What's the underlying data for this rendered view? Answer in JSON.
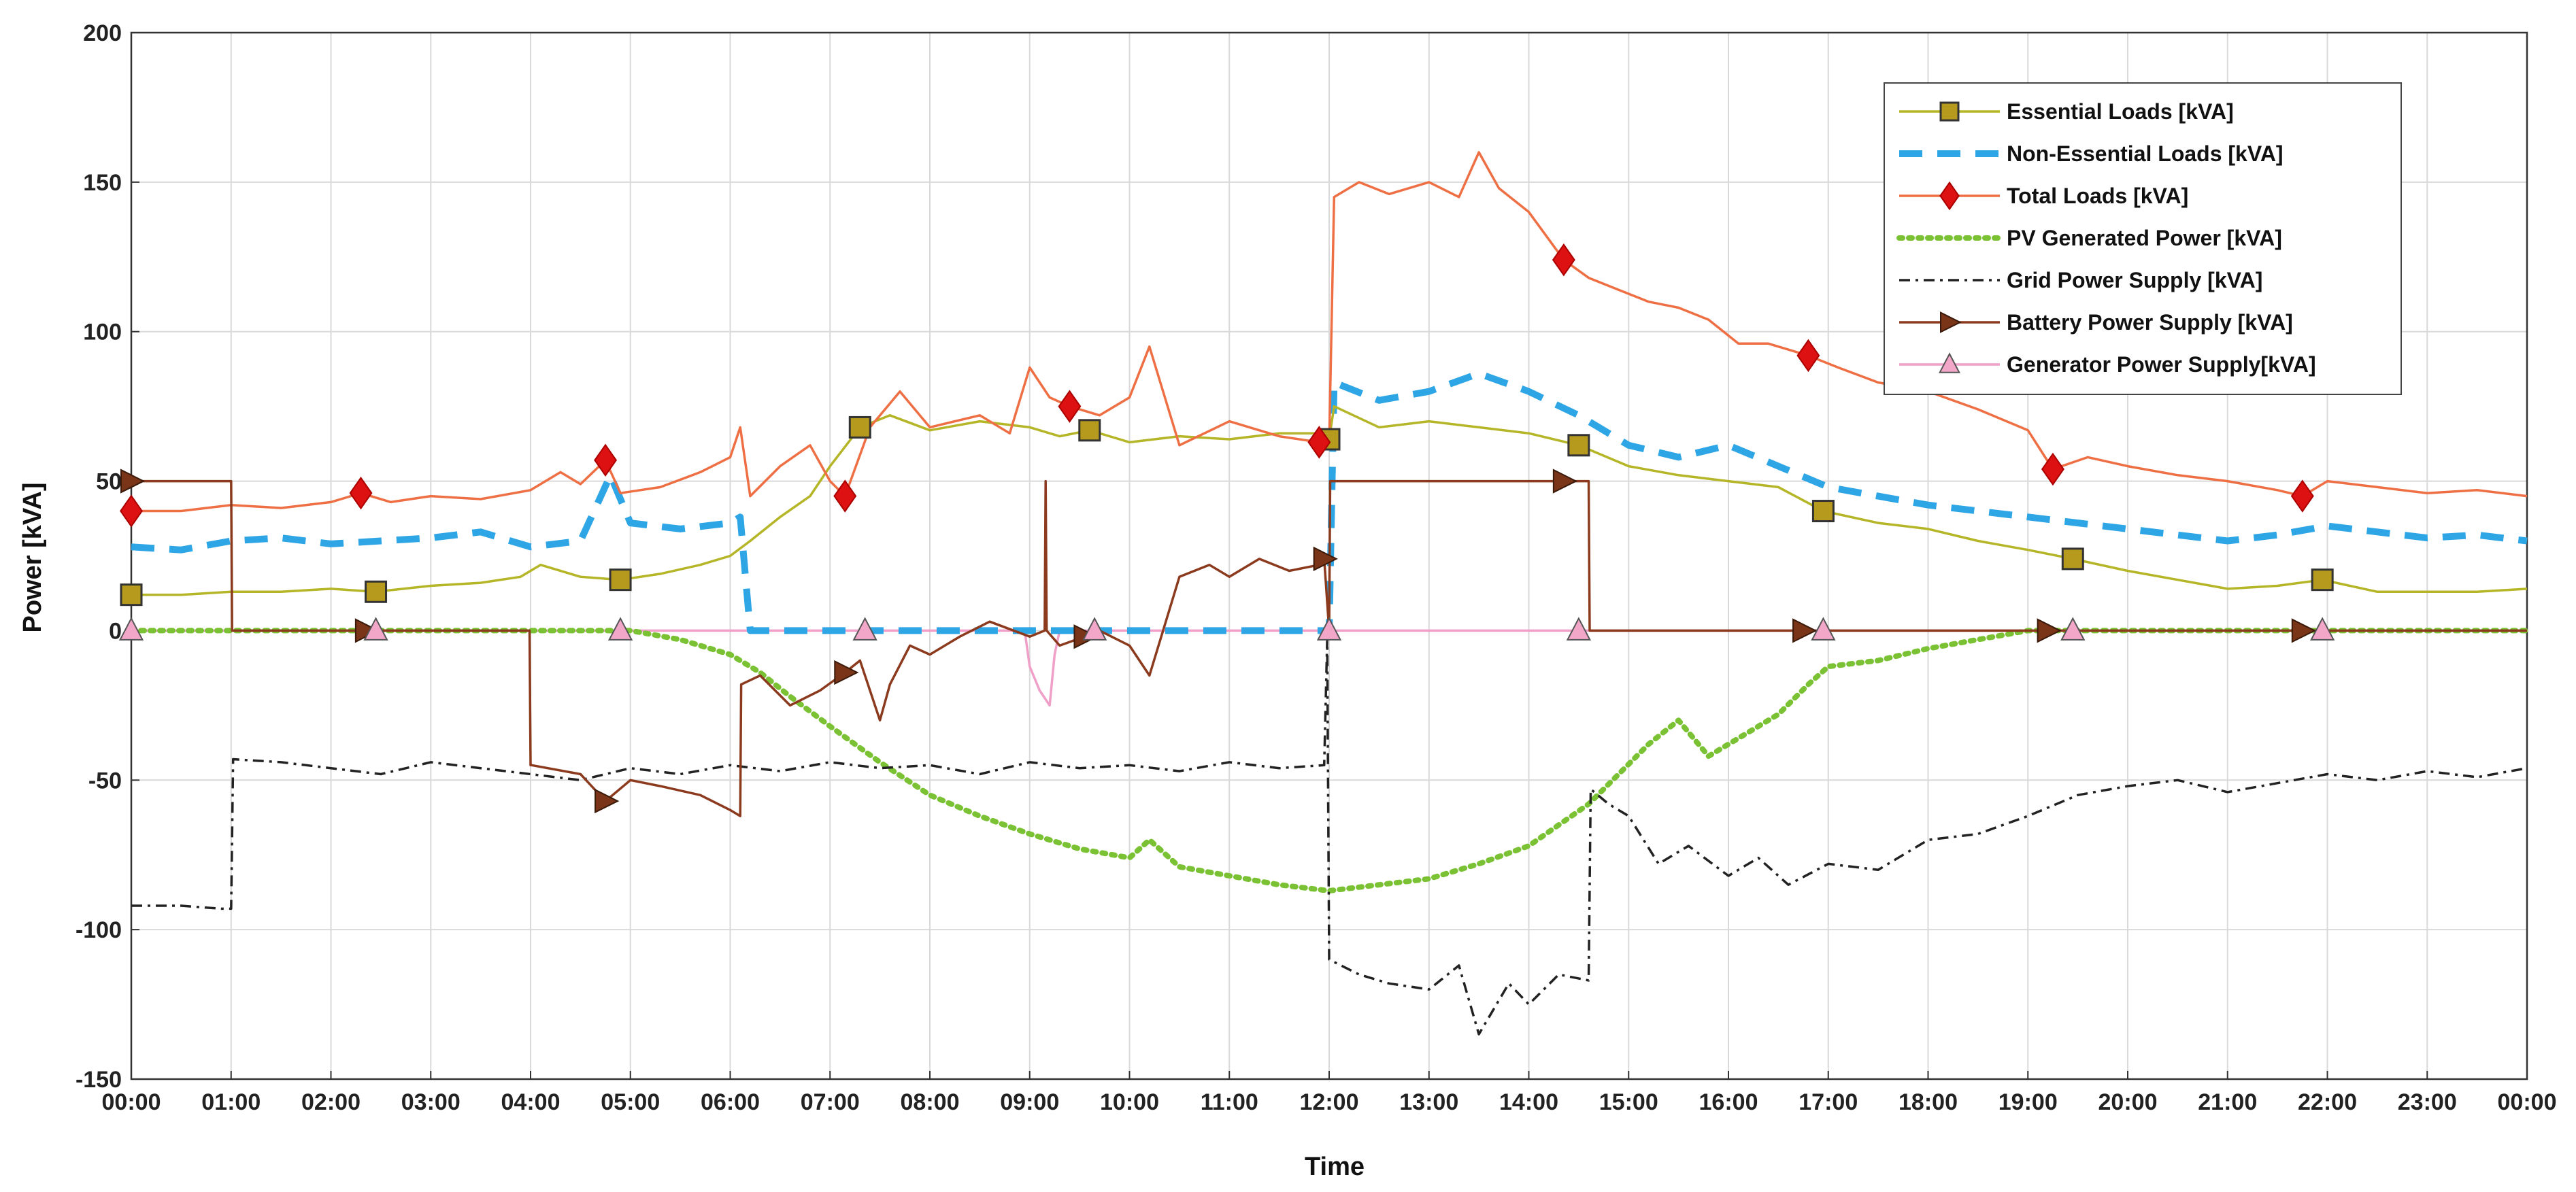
{
  "chart_data": {
    "type": "line",
    "title": "",
    "xlabel": "Time",
    "ylabel": "Power [kVA]",
    "xlim": [
      0,
      24
    ],
    "ylim": [
      -150,
      200
    ],
    "grid": true,
    "legend_position": "top-right",
    "x_tick_labels": [
      "00:00",
      "01:00",
      "02:00",
      "03:00",
      "04:00",
      "05:00",
      "06:00",
      "07:00",
      "08:00",
      "09:00",
      "10:00",
      "11:00",
      "12:00",
      "13:00",
      "14:00",
      "15:00",
      "16:00",
      "17:00",
      "18:00",
      "19:00",
      "20:00",
      "21:00",
      "22:00",
      "23:00",
      "00:00"
    ],
    "y_ticks": [
      -150,
      -100,
      -50,
      0,
      50,
      100,
      150,
      200
    ],
    "x_unit": "hours",
    "series": [
      {
        "name": "Essential Loads [kVA]",
        "color": "#b5b528",
        "marker": "square",
        "marker_color": "#b59a1e",
        "dash": "solid",
        "marker_x": [
          0.0,
          2.45,
          4.9,
          7.3,
          9.6,
          12.0,
          14.5,
          16.95,
          19.45,
          21.95
        ],
        "x": [
          0.0,
          0.5,
          1.0,
          1.5,
          2.0,
          2.45,
          3.0,
          3.5,
          3.9,
          4.1,
          4.5,
          4.9,
          5.3,
          5.7,
          6.0,
          6.2,
          6.5,
          6.8,
          7.0,
          7.3,
          7.6,
          8.0,
          8.5,
          9.0,
          9.3,
          9.6,
          10.0,
          10.5,
          11.0,
          11.5,
          11.9,
          12.0,
          12.05,
          12.5,
          13.0,
          13.5,
          14.0,
          14.5,
          15.0,
          15.5,
          16.0,
          16.5,
          16.95,
          17.5,
          18.0,
          18.5,
          19.0,
          19.45,
          20.0,
          20.5,
          21.0,
          21.5,
          21.95,
          22.5,
          23.0,
          23.5,
          24.0
        ],
        "y": [
          12,
          12,
          13,
          13,
          14,
          13,
          15,
          16,
          18,
          22,
          18,
          17,
          19,
          22,
          25,
          30,
          38,
          45,
          55,
          68,
          72,
          67,
          70,
          68,
          65,
          67,
          63,
          65,
          64,
          66,
          66,
          64,
          75,
          68,
          70,
          68,
          66,
          62,
          55,
          52,
          50,
          48,
          40,
          36,
          34,
          30,
          27,
          24,
          20,
          17,
          14,
          15,
          17,
          13,
          13,
          13,
          14
        ]
      },
      {
        "name": "Non-Essential Loads [kVA]",
        "color": "#2ea6e6",
        "marker": "none",
        "dash": "dashed",
        "x": [
          0.0,
          0.5,
          1.0,
          1.5,
          2.0,
          2.5,
          3.0,
          3.5,
          4.0,
          4.5,
          4.8,
          5.0,
          5.5,
          6.0,
          6.1,
          6.2,
          6.5,
          7.0,
          8.0,
          9.0,
          10.0,
          11.0,
          11.9,
          12.0,
          12.05,
          12.5,
          13.0,
          13.5,
          14.0,
          14.5,
          15.0,
          15.5,
          16.0,
          16.5,
          17.0,
          17.5,
          18.0,
          18.5,
          19.0,
          19.5,
          20.0,
          20.5,
          21.0,
          21.5,
          22.0,
          22.5,
          23.0,
          23.5,
          24.0
        ],
        "y": [
          28,
          27,
          30,
          31,
          29,
          30,
          31,
          33,
          28,
          30,
          52,
          36,
          34,
          36,
          38,
          0,
          0,
          0,
          0,
          0,
          0,
          0,
          0,
          0,
          83,
          77,
          80,
          86,
          80,
          72,
          62,
          58,
          62,
          55,
          48,
          45,
          42,
          40,
          38,
          36,
          34,
          32,
          30,
          32,
          35,
          33,
          31,
          32,
          30
        ]
      },
      {
        "name": "Total Loads [kVA]",
        "color": "#ee6f44",
        "marker": "diamond",
        "marker_color": "#dd1111",
        "dash": "solid",
        "marker_x": [
          0.0,
          2.3,
          4.75,
          7.15,
          9.4,
          11.9,
          14.35,
          16.8,
          19.25,
          21.75
        ],
        "x": [
          0.0,
          0.5,
          1.0,
          1.5,
          2.0,
          2.3,
          2.6,
          3.0,
          3.5,
          4.0,
          4.3,
          4.5,
          4.75,
          4.9,
          5.3,
          5.7,
          6.0,
          6.1,
          6.2,
          6.5,
          6.8,
          7.0,
          7.15,
          7.4,
          7.7,
          8.0,
          8.5,
          8.8,
          9.0,
          9.2,
          9.4,
          9.7,
          10.0,
          10.2,
          10.5,
          11.0,
          11.5,
          11.9,
          12.0,
          12.05,
          12.3,
          12.6,
          13.0,
          13.3,
          13.5,
          13.7,
          14.0,
          14.35,
          14.6,
          14.9,
          15.2,
          15.5,
          15.8,
          16.1,
          16.4,
          16.8,
          17.1,
          17.5,
          18.0,
          18.5,
          19.0,
          19.25,
          19.6,
          20.0,
          20.5,
          21.0,
          21.5,
          21.75,
          22.0,
          22.5,
          23.0,
          23.5,
          24.0
        ],
        "y": [
          40,
          40,
          42,
          41,
          43,
          46,
          43,
          45,
          44,
          47,
          53,
          49,
          57,
          46,
          48,
          53,
          58,
          68,
          45,
          55,
          62,
          50,
          45,
          68,
          80,
          68,
          72,
          66,
          88,
          78,
          75,
          72,
          78,
          95,
          62,
          70,
          65,
          63,
          62,
          145,
          150,
          146,
          150,
          145,
          160,
          148,
          140,
          124,
          118,
          114,
          110,
          108,
          104,
          96,
          96,
          92,
          88,
          83,
          80,
          74,
          67,
          54,
          58,
          55,
          52,
          50,
          47,
          45,
          50,
          48,
          46,
          47,
          45
        ]
      },
      {
        "name": "PV Generated Power [kVA]",
        "color": "#7ac234",
        "marker": "none",
        "dash": "dotted",
        "x": [
          0.0,
          5.0,
          5.5,
          6.0,
          6.3,
          6.6,
          7.0,
          7.5,
          8.0,
          8.5,
          9.0,
          9.5,
          10.0,
          10.2,
          10.5,
          11.0,
          11.5,
          12.0,
          12.5,
          13.0,
          13.5,
          14.0,
          14.3,
          14.6,
          14.9,
          15.2,
          15.5,
          15.8,
          16.0,
          16.5,
          16.8,
          17.0,
          17.5,
          18.0,
          18.5,
          19.0,
          24.0
        ],
        "y": [
          0,
          0,
          -3,
          -8,
          -14,
          -22,
          -32,
          -44,
          -55,
          -62,
          -68,
          -73,
          -76,
          -70,
          -79,
          -82,
          -85,
          -87,
          -85,
          -83,
          -78,
          -72,
          -65,
          -58,
          -48,
          -38,
          -30,
          -42,
          -38,
          -28,
          -18,
          -12,
          -10,
          -6,
          -3,
          0,
          0
        ]
      },
      {
        "name": "Grid Power Supply [kVA]",
        "color": "#222222",
        "marker": "none",
        "dash": "dashdot",
        "x": [
          0.0,
          0.5,
          0.9,
          1.0,
          1.02,
          1.5,
          2.0,
          2.5,
          3.0,
          3.5,
          4.0,
          4.5,
          5.0,
          5.5,
          6.0,
          6.5,
          7.0,
          7.5,
          8.0,
          8.5,
          9.0,
          9.5,
          10.0,
          10.5,
          11.0,
          11.5,
          11.95,
          11.98,
          12.0,
          12.3,
          12.6,
          13.0,
          13.3,
          13.5,
          13.8,
          14.0,
          14.3,
          14.6,
          14.62,
          14.8,
          15.0,
          15.3,
          15.6,
          16.0,
          16.3,
          16.6,
          17.0,
          17.5,
          18.0,
          18.5,
          19.0,
          19.5,
          20.0,
          20.5,
          21.0,
          21.5,
          22.0,
          22.5,
          23.0,
          23.5,
          24.0
        ],
        "y": [
          -92,
          -92,
          -93,
          -93,
          -43,
          -44,
          -46,
          -48,
          -44,
          -46,
          -48,
          -50,
          -46,
          -48,
          -45,
          -47,
          -44,
          -46,
          -45,
          -48,
          -44,
          -46,
          -45,
          -47,
          -44,
          -46,
          -45,
          -3,
          -110,
          -115,
          -118,
          -120,
          -112,
          -135,
          -118,
          -125,
          -115,
          -117,
          -53,
          -58,
          -62,
          -78,
          -72,
          -82,
          -76,
          -85,
          -78,
          -80,
          -70,
          -68,
          -62,
          -55,
          -52,
          -50,
          -54,
          -51,
          -48,
          -50,
          -47,
          -49,
          -46
        ]
      },
      {
        "name": "Battery Power Supply [kVA]",
        "color": "#8b3a1e",
        "marker": "triangle-right",
        "marker_color": "#7a3417",
        "dash": "solid",
        "marker_x": [
          0.0,
          2.35,
          4.75,
          7.15,
          9.55,
          11.95,
          14.35,
          16.75,
          19.2,
          21.75
        ],
        "x": [
          0.0,
          1.0,
          1.01,
          3.99,
          4.0,
          4.01,
          4.5,
          4.75,
          5.0,
          5.3,
          5.7,
          6.0,
          6.1,
          6.11,
          6.3,
          6.6,
          6.9,
          7.15,
          7.3,
          7.5,
          7.6,
          7.8,
          8.0,
          8.3,
          8.6,
          9.0,
          9.15,
          9.16,
          9.17,
          9.3,
          9.55,
          9.7,
          10.0,
          10.2,
          10.5,
          10.8,
          11.0,
          11.3,
          11.6,
          11.9,
          11.95,
          12.0,
          12.01,
          14.6,
          14.61,
          15.0,
          24.0
        ],
        "y": [
          50,
          50,
          0,
          0,
          -45,
          -45,
          -48,
          -57,
          -50,
          -52,
          -55,
          -60,
          -62,
          -18,
          -15,
          -25,
          -20,
          -14,
          -10,
          -30,
          -18,
          -5,
          -8,
          -2,
          3,
          -2,
          0,
          50,
          0,
          -5,
          -2,
          0,
          -5,
          -15,
          18,
          22,
          18,
          24,
          20,
          22,
          24,
          0,
          50,
          50,
          0,
          0,
          0
        ]
      },
      {
        "name": "Generator Power Supply[kVA]",
        "color": "#f0a0c8",
        "marker": "triangle-up",
        "marker_color": "#f2a6c8",
        "dash": "solid",
        "marker_x": [
          0.0,
          2.45,
          4.9,
          7.35,
          9.65,
          12.0,
          14.5,
          16.95,
          19.45,
          21.95
        ],
        "x": [
          0.0,
          8.95,
          9.0,
          9.1,
          9.2,
          9.25,
          9.3,
          24.0
        ],
        "y": [
          0,
          0,
          -12,
          -20,
          -25,
          -8,
          0,
          0
        ]
      }
    ]
  }
}
